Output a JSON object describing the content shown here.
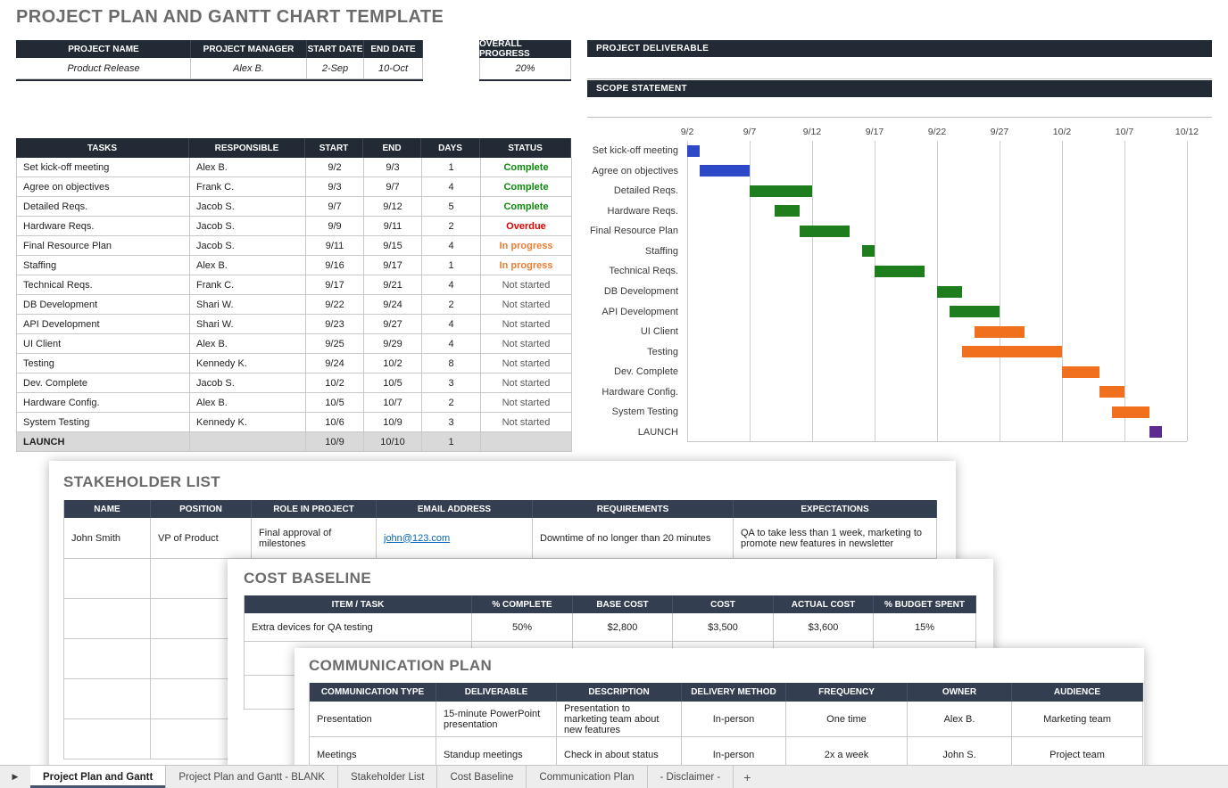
{
  "title": "PROJECT PLAN AND GANTT CHART TEMPLATE",
  "project_info": {
    "headers": [
      "PROJECT NAME",
      "PROJECT MANAGER",
      "START DATE",
      "END DATE"
    ],
    "values": [
      "Product Release",
      "Alex B.",
      "2-Sep",
      "10-Oct"
    ]
  },
  "overall_progress": {
    "label": "OVERALL PROGRESS",
    "value": "20%"
  },
  "project_deliverable": {
    "label": "PROJECT DELIVERABLE",
    "value": ""
  },
  "scope_statement": {
    "label": "SCOPE STATEMENT",
    "value": ""
  },
  "tasks_table": {
    "headers": [
      "TASKS",
      "RESPONSIBLE",
      "START",
      "END",
      "DAYS",
      "STATUS"
    ],
    "status_colors": {
      "Complete": "#0B8A0B",
      "Overdue": "#E00000",
      "In progress": "#ED7D31",
      "Not started": "#595959"
    },
    "rows": [
      [
        "Set kick-off meeting",
        "Alex B.",
        "9/2",
        "9/3",
        "1",
        "Complete"
      ],
      [
        "Agree on objectives",
        "Frank C.",
        "9/3",
        "9/7",
        "4",
        "Complete"
      ],
      [
        "Detailed Reqs.",
        "Jacob S.",
        "9/7",
        "9/12",
        "5",
        "Complete"
      ],
      [
        "Hardware Reqs.",
        "Jacob S.",
        "9/9",
        "9/11",
        "2",
        "Overdue"
      ],
      [
        "Final Resource Plan",
        "Jacob S.",
        "9/11",
        "9/15",
        "4",
        "In progress"
      ],
      [
        "Staffing",
        "Alex B.",
        "9/16",
        "9/17",
        "1",
        "In progress"
      ],
      [
        "Technical Reqs.",
        "Frank C.",
        "9/17",
        "9/21",
        "4",
        "Not started"
      ],
      [
        "DB Development",
        "Shari W.",
        "9/22",
        "9/24",
        "2",
        "Not started"
      ],
      [
        "API Development",
        "Shari W.",
        "9/23",
        "9/27",
        "4",
        "Not started"
      ],
      [
        "UI Client",
        "Alex B.",
        "9/25",
        "9/29",
        "4",
        "Not started"
      ],
      [
        "Testing",
        "Kennedy K.",
        "9/24",
        "10/2",
        "8",
        "Not started"
      ],
      [
        "Dev. Complete",
        "Jacob S.",
        "10/2",
        "10/5",
        "3",
        "Not started"
      ],
      [
        "Hardware Config.",
        "Alex B.",
        "10/5",
        "10/7",
        "2",
        "Not started"
      ],
      [
        "System Testing",
        "Kennedy K.",
        "10/6",
        "10/9",
        "3",
        "Not started"
      ],
      [
        "LAUNCH",
        "",
        "10/9",
        "10/10",
        "1",
        ""
      ]
    ]
  },
  "chart_data": {
    "type": "gantt",
    "x_ticks": [
      "9/2",
      "9/7",
      "9/12",
      "9/17",
      "9/22",
      "9/27",
      "10/2",
      "10/7",
      "10/12"
    ],
    "x_domain_days": [
      0,
      40
    ],
    "grid": true,
    "tasks": [
      {
        "label": "Set kick-off meeting",
        "start": "9/2",
        "end": "9/3",
        "start_day": 0,
        "duration_days": 1,
        "color": "#2E49C8"
      },
      {
        "label": "Agree on objectives",
        "start": "9/3",
        "end": "9/7",
        "start_day": 1,
        "duration_days": 4,
        "color": "#2E49C8"
      },
      {
        "label": "Detailed Reqs.",
        "start": "9/7",
        "end": "9/12",
        "start_day": 5,
        "duration_days": 5,
        "color": "#1E7E1E"
      },
      {
        "label": "Hardware Reqs.",
        "start": "9/9",
        "end": "9/11",
        "start_day": 7,
        "duration_days": 2,
        "color": "#1E7E1E"
      },
      {
        "label": "Final Resource Plan",
        "start": "9/11",
        "end": "9/15",
        "start_day": 9,
        "duration_days": 4,
        "color": "#1E7E1E"
      },
      {
        "label": "Staffing",
        "start": "9/16",
        "end": "9/17",
        "start_day": 14,
        "duration_days": 1,
        "color": "#1E7E1E"
      },
      {
        "label": "Technical Reqs.",
        "start": "9/17",
        "end": "9/21",
        "start_day": 15,
        "duration_days": 4,
        "color": "#1E7E1E"
      },
      {
        "label": "DB Development",
        "start": "9/22",
        "end": "9/24",
        "start_day": 20,
        "duration_days": 2,
        "color": "#1E7E1E"
      },
      {
        "label": "API Development",
        "start": "9/23",
        "end": "9/27",
        "start_day": 21,
        "duration_days": 4,
        "color": "#1E7E1E"
      },
      {
        "label": "UI Client",
        "start": "9/25",
        "end": "9/29",
        "start_day": 23,
        "duration_days": 4,
        "color": "#F0701E"
      },
      {
        "label": "Testing",
        "start": "9/24",
        "end": "10/2",
        "start_day": 22,
        "duration_days": 8,
        "color": "#F0701E"
      },
      {
        "label": "Dev. Complete",
        "start": "10/2",
        "end": "10/5",
        "start_day": 30,
        "duration_days": 3,
        "color": "#F0701E"
      },
      {
        "label": "Hardware Config.",
        "start": "10/5",
        "end": "10/7",
        "start_day": 33,
        "duration_days": 2,
        "color": "#F0701E"
      },
      {
        "label": "System Testing",
        "start": "10/6",
        "end": "10/9",
        "start_day": 34,
        "duration_days": 3,
        "color": "#F0701E"
      },
      {
        "label": "LAUNCH",
        "start": "10/9",
        "end": "10/10",
        "start_day": 37,
        "duration_days": 1,
        "color": "#5C2D91"
      }
    ]
  },
  "stakeholder_list": {
    "title": "STAKEHOLDER LIST",
    "headers": [
      "NAME",
      "POSITION",
      "ROLE IN PROJECT",
      "EMAIL ADDRESS",
      "REQUIREMENTS",
      "EXPECTATIONS"
    ],
    "rows": [
      [
        "John Smith",
        "VP of Product",
        "Final approval of milestones",
        "john@123.com",
        "Downtime of no longer than 20 minutes",
        "QA to take less than 1 week, marketing to promote new features in newsletter"
      ]
    ],
    "email_column_index": 3,
    "empty_row_count": 5
  },
  "cost_baseline": {
    "title": "COST BASELINE",
    "headers": [
      "ITEM / TASK",
      "% COMPLETE",
      "BASE COST",
      "COST",
      "ACTUAL COST",
      "% BUDGET SPENT"
    ],
    "rows": [
      [
        "Extra devices for QA testing",
        "50%",
        "$2,800",
        "$3,500",
        "$3,600",
        "15%"
      ]
    ],
    "empty_row_count": 2
  },
  "communication_plan": {
    "title": "COMMUNICATION PLAN",
    "headers": [
      "COMMUNICATION TYPE",
      "DELIVERABLE",
      "DESCRIPTION",
      "DELIVERY METHOD",
      "FREQUENCY",
      "OWNER",
      "AUDIENCE"
    ],
    "rows": [
      [
        "Presentation",
        "15-minute PowerPoint presentation",
        "Presentation to marketing team about new features",
        "In-person",
        "One time",
        "Alex B.",
        "Marketing team"
      ],
      [
        "Meetings",
        "Standup meetings",
        "Check in about status",
        "In-person",
        "2x a week",
        "John S.",
        "Project team"
      ]
    ],
    "empty_row_count": 1
  },
  "sheet_tabs": {
    "nav_arrow": "right-arrow",
    "tabs": [
      {
        "label": "Project Plan and Gantt",
        "active": true
      },
      {
        "label": "Project Plan and Gantt - BLANK",
        "active": false
      },
      {
        "label": "Stakeholder List",
        "active": false
      },
      {
        "label": "Cost Baseline",
        "active": false
      },
      {
        "label": "Communication Plan",
        "active": false
      },
      {
        "label": "- Disclaimer -",
        "active": false
      }
    ],
    "add_label": "+"
  }
}
